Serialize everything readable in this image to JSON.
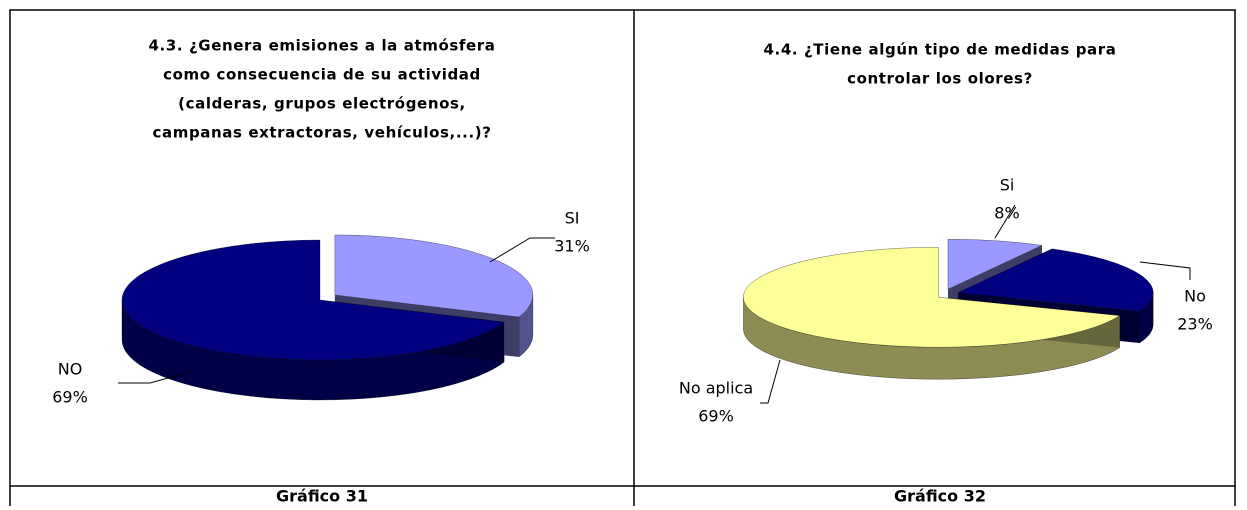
{
  "chart_data": [
    {
      "type": "pie",
      "title": [
        "4.3. ¿Genera emisiones a la atmósfera",
        "como consecuencia de su actividad",
        "(calderas, grupos electrógenos,",
        "campanas extractoras, vehículos,...)?"
      ],
      "categories": [
        "SI",
        "NO"
      ],
      "values": [
        31,
        69
      ],
      "value_labels": [
        "31%",
        "69%"
      ],
      "colors": [
        "#9999ff",
        "#000080"
      ],
      "caption": "Gráfico 31"
    },
    {
      "type": "pie",
      "title": [
        "4.4. ¿Tiene algún tipo de medidas para",
        "controlar los olores?"
      ],
      "categories": [
        "Si",
        "No",
        "No aplica"
      ],
      "values": [
        8,
        23,
        69
      ],
      "value_labels": [
        "8%",
        "23%",
        "69%"
      ],
      "colors": [
        "#9999ff",
        "#000080",
        "#ffff99"
      ],
      "caption": "Gráfico 32"
    }
  ]
}
